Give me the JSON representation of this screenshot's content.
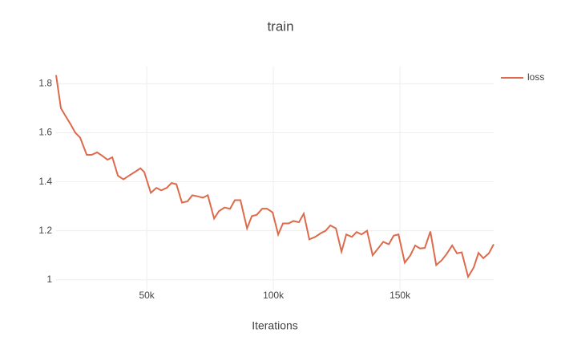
{
  "chart_data": {
    "type": "line",
    "title": "train",
    "x_label": "Iterations",
    "x": [
      14200,
      16100,
      18000,
      19900,
      21800,
      23700,
      26300,
      28200,
      30400,
      32300,
      34500,
      36400,
      38600,
      40800,
      43000,
      45300,
      47500,
      49000,
      51600,
      53800,
      55700,
      57900,
      59800,
      61700,
      63900,
      66100,
      68000,
      70300,
      72200,
      74100,
      76600,
      78500,
      80700,
      82900,
      84800,
      87000,
      89600,
      91500,
      93400,
      95600,
      97500,
      99700,
      101900,
      103800,
      106000,
      107900,
      110100,
      112000,
      114200,
      116500,
      118700,
      120600,
      122500,
      124700,
      126900,
      128800,
      131000,
      132900,
      134800,
      137000,
      139200,
      141500,
      143400,
      145600,
      147500,
      149400,
      151900,
      154100,
      156000,
      157900,
      159800,
      162000,
      164300,
      166500,
      168400,
      170600,
      172500,
      174400,
      176900,
      179100,
      181000,
      182900,
      185100,
      187000
    ],
    "series": [
      {
        "name": "loss",
        "color": "#dd6a4b",
        "values": [
          1.835,
          1.7,
          1.667,
          1.635,
          1.6,
          1.58,
          1.51,
          1.51,
          1.52,
          1.507,
          1.49,
          1.5,
          1.425,
          1.41,
          1.425,
          1.44,
          1.455,
          1.44,
          1.355,
          1.375,
          1.365,
          1.375,
          1.395,
          1.39,
          1.315,
          1.32,
          1.345,
          1.34,
          1.335,
          1.345,
          1.25,
          1.28,
          1.295,
          1.29,
          1.325,
          1.325,
          1.21,
          1.26,
          1.265,
          1.29,
          1.29,
          1.275,
          1.185,
          1.23,
          1.23,
          1.24,
          1.235,
          1.27,
          1.165,
          1.175,
          1.19,
          1.2,
          1.222,
          1.21,
          1.115,
          1.185,
          1.175,
          1.195,
          1.185,
          1.2,
          1.1,
          1.13,
          1.155,
          1.145,
          1.18,
          1.185,
          1.07,
          1.1,
          1.14,
          1.128,
          1.13,
          1.197,
          1.06,
          1.08,
          1.105,
          1.14,
          1.108,
          1.112,
          1.012,
          1.05,
          1.11,
          1.088,
          1.108,
          1.145
        ]
      }
    ],
    "xlim": [
      14200,
      187000
    ],
    "xticks": [
      {
        "value": 50000,
        "label": "50k"
      },
      {
        "value": 100000,
        "label": "100k"
      },
      {
        "value": 150000,
        "label": "150k"
      }
    ],
    "ylim": [
      0.96,
      1.87
    ],
    "yticks": [
      1,
      1.2,
      1.4,
      1.6,
      1.8
    ],
    "grid": true
  }
}
